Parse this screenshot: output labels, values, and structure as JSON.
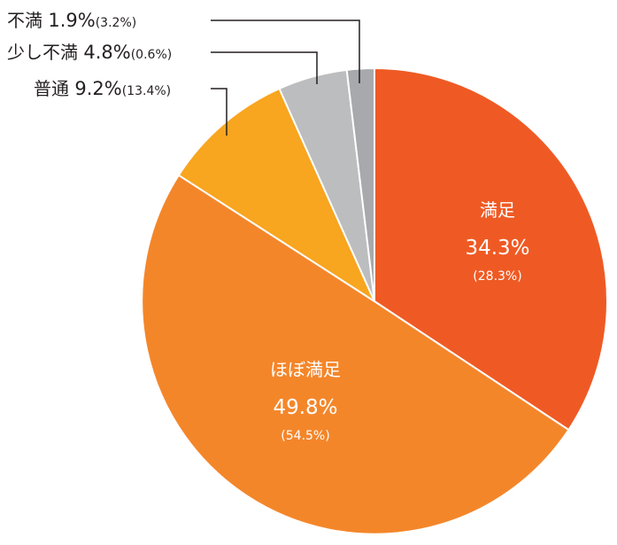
{
  "chart_data": {
    "type": "pie",
    "slices": [
      {
        "name": "満足",
        "value": 34.3,
        "value_label": "34.3%",
        "previous_label": "(28.3%)",
        "color": "#ef5a24"
      },
      {
        "name": "ほぼ満足",
        "value": 49.8,
        "value_label": "49.8%",
        "previous_label": "(54.5%)",
        "color": "#f4862a"
      },
      {
        "name": "普通",
        "value": 9.2,
        "value_label": "9.2%",
        "previous_label": "(13.4%)",
        "color": "#f8a51f"
      },
      {
        "name": "少し不満",
        "value": 4.8,
        "value_label": "4.8%",
        "previous_label": "(0.6%)",
        "color": "#bcbdbf"
      },
      {
        "name": "不満",
        "value": 1.9,
        "value_label": "1.9%",
        "previous_label": "(3.2%)",
        "color": "#a7a9ac"
      }
    ],
    "start_angle": "12 o'clock",
    "direction": "clockwise",
    "label_placement": {
      "満足": "inside",
      "ほぼ満足": "inside",
      "普通": "outside-left",
      "少し不満": "outside-left",
      "不満": "outside-left"
    },
    "leader_line_color": "#231f20",
    "slice_border_color": "#ffffff"
  }
}
